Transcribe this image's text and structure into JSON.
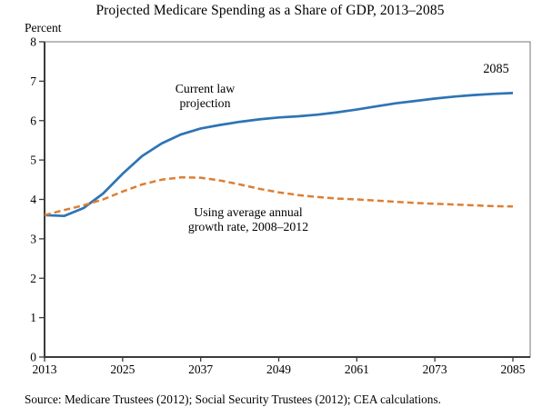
{
  "title": "Projected Medicare Spending as a Share of GDP, 2013–2085",
  "y_axis_unit_label": "Percent",
  "source_note": "Source: Medicare Trustees (2012); Social Security Trustees (2012); CEA calculations.",
  "annotations": {
    "current_law": {
      "line1": "Current law",
      "line2": "projection"
    },
    "growth_rate": {
      "line1": "Using average annual",
      "line2": "growth rate, 2008–2012"
    },
    "end_year": "2085"
  },
  "colors": {
    "current_law_line": "#2E74B5",
    "growth_rate_line": "#DD7E33",
    "axis": "#3b3b3b",
    "frame": "#808080",
    "text": "#000000"
  },
  "chart_data": {
    "type": "line",
    "title": "Projected Medicare Spending as a Share of GDP, 2013–2085",
    "xlabel": "",
    "ylabel": "Percent",
    "xlim": [
      2013,
      2085
    ],
    "ylim": [
      0,
      8
    ],
    "x_ticks": [
      2013,
      2025,
      2037,
      2049,
      2061,
      2073,
      2085
    ],
    "y_ticks": [
      0,
      1,
      2,
      3,
      4,
      5,
      6,
      7,
      8
    ],
    "grid": false,
    "legend_position": "inline-annotations",
    "x": [
      2013,
      2016,
      2019,
      2022,
      2025,
      2028,
      2031,
      2034,
      2037,
      2040,
      2043,
      2046,
      2049,
      2052,
      2055,
      2058,
      2061,
      2064,
      2067,
      2070,
      2073,
      2076,
      2079,
      2082,
      2085
    ],
    "series": [
      {
        "name": "Current law projection",
        "style": "solid",
        "color": "#2E74B5",
        "values": [
          3.6,
          3.58,
          3.78,
          4.15,
          4.65,
          5.1,
          5.42,
          5.65,
          5.8,
          5.89,
          5.97,
          6.03,
          6.08,
          6.11,
          6.15,
          6.21,
          6.28,
          6.36,
          6.44,
          6.5,
          6.56,
          6.61,
          6.65,
          6.68,
          6.7
        ]
      },
      {
        "name": "Using average annual growth rate, 2008–2012",
        "style": "dashed",
        "color": "#DD7E33",
        "values": [
          3.6,
          3.73,
          3.85,
          4.0,
          4.2,
          4.38,
          4.5,
          4.56,
          4.55,
          4.48,
          4.38,
          4.27,
          4.18,
          4.11,
          4.06,
          4.02,
          4.0,
          3.97,
          3.94,
          3.91,
          3.89,
          3.87,
          3.85,
          3.83,
          3.82
        ]
      }
    ]
  }
}
